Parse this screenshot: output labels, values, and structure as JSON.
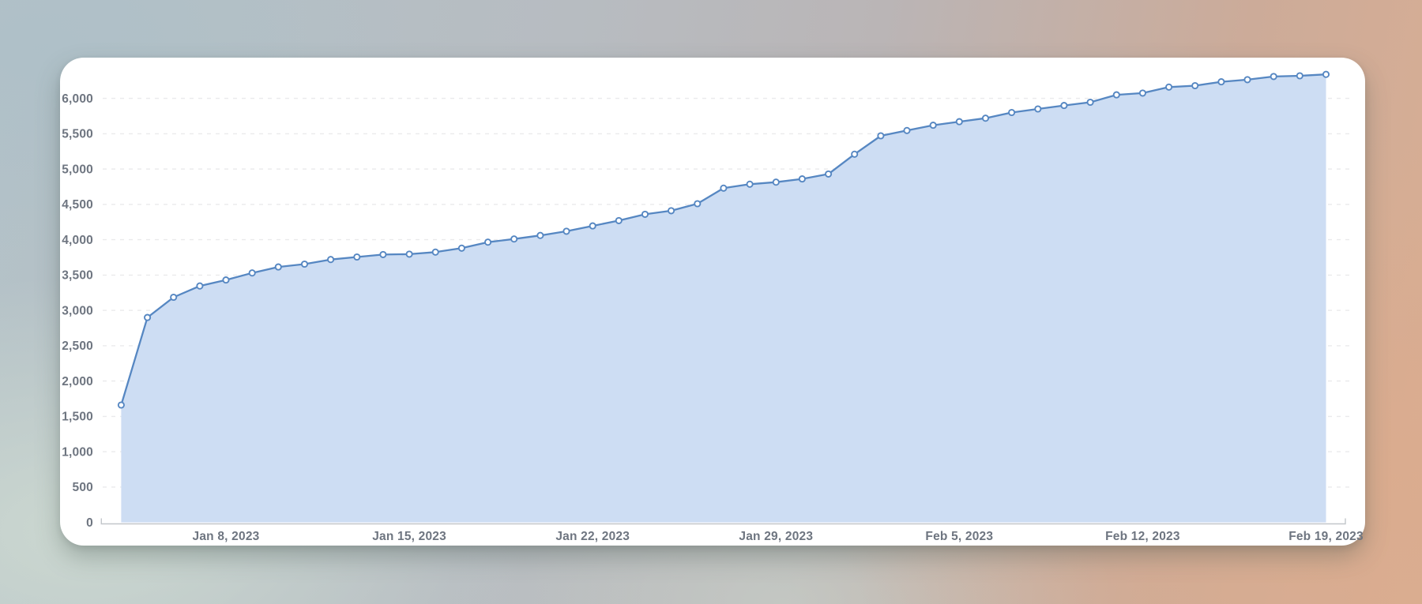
{
  "chart_data": {
    "type": "area",
    "title": "",
    "legend": "none",
    "grid": "horizontal-dashed",
    "x_axis_kind": "daily dates (one point per day), markers on every point",
    "values": [
      1660,
      2900,
      3185,
      3345,
      3430,
      3530,
      3615,
      3655,
      3720,
      3755,
      3790,
      3795,
      3825,
      3880,
      3965,
      4010,
      4060,
      4120,
      4195,
      4270,
      4360,
      4410,
      4510,
      4730,
      4785,
      4815,
      4860,
      4930,
      5210,
      5470,
      5545,
      5620,
      5670,
      5720,
      5800,
      5850,
      5900,
      5945,
      6050,
      6075,
      6160,
      6180,
      6235,
      6265,
      6310,
      6320,
      6340
    ],
    "x_ticks": [
      {
        "at": 4,
        "label": "Jan 8, 2023"
      },
      {
        "at": 11,
        "label": "Jan 15, 2023"
      },
      {
        "at": 18,
        "label": "Jan 22, 2023"
      },
      {
        "at": 25,
        "label": "Jan 29, 2023"
      },
      {
        "at": 32,
        "label": "Feb 5, 2023"
      },
      {
        "at": 39,
        "label": "Feb 12, 2023"
      },
      {
        "at": 46,
        "label": "Feb 19, 2023"
      }
    ],
    "y_ticks": [
      {
        "value": 0,
        "label": "0"
      },
      {
        "value": 500,
        "label": "500"
      },
      {
        "value": 1000,
        "label": "1,000"
      },
      {
        "value": 1500,
        "label": "1,500"
      },
      {
        "value": 2000,
        "label": "2,000"
      },
      {
        "value": 2500,
        "label": "2,500"
      },
      {
        "value": 3000,
        "label": "3,000"
      },
      {
        "value": 3500,
        "label": "3,500"
      },
      {
        "value": 4000,
        "label": "4,000"
      },
      {
        "value": 4500,
        "label": "4,500"
      },
      {
        "value": 5000,
        "label": "5,000"
      },
      {
        "value": 5500,
        "label": "5,500"
      },
      {
        "value": 6000,
        "label": "6,000"
      }
    ],
    "ylim": [
      0,
      6500
    ],
    "colors": {
      "line": "#5687c2",
      "area_fill": "#cdddf3",
      "marker_fill": "#ffffff",
      "marker_stroke": "#5687c2",
      "grid": "#eaeaec",
      "axis": "#c2c6ca",
      "tick_text": "#6e7580",
      "card": "#ffffff"
    }
  }
}
